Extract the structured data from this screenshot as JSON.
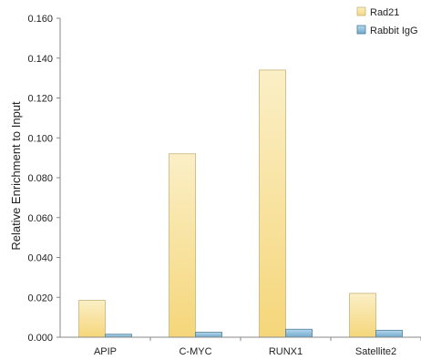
{
  "chart_data": {
    "type": "bar",
    "categories": [
      "APIP",
      "C-MYC",
      "RUNX1",
      "Satellite2"
    ],
    "series": [
      {
        "name": "Rad21",
        "values": [
          0.0185,
          0.092,
          0.134,
          0.022
        ],
        "color": "#f5d67a"
      },
      {
        "name": "Rabbit IgG",
        "values": [
          0.0015,
          0.0025,
          0.004,
          0.0035
        ],
        "color": "#7fb6d6"
      }
    ],
    "title": "",
    "xlabel": "",
    "ylabel": "Relative Enrichment to Input",
    "ylim": [
      0,
      0.16
    ],
    "yticks": [
      "0.000",
      "0.020",
      "0.040",
      "0.060",
      "0.080",
      "0.100",
      "0.120",
      "0.140",
      "0.160"
    ],
    "grid": false,
    "legend_position": "top-right"
  }
}
